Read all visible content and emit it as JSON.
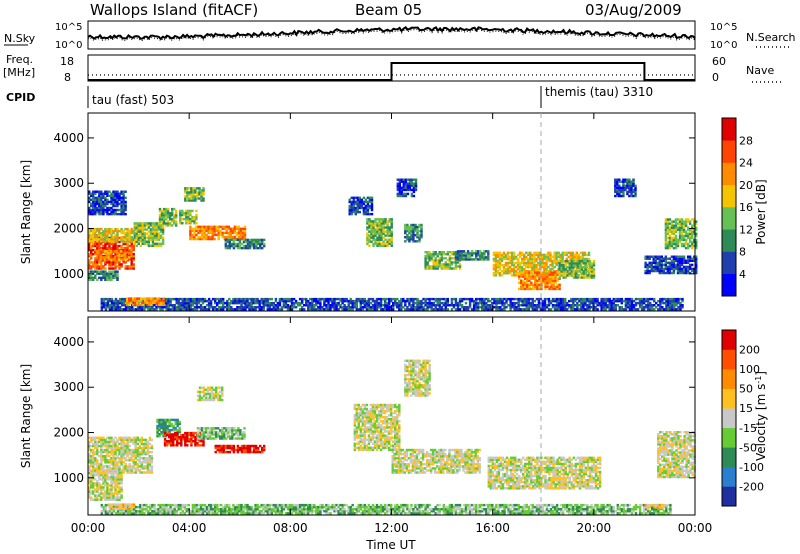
{
  "header": {
    "site": "Wallops Island (fitACF)",
    "beam": "Beam 05",
    "date": "03/Aug/2009"
  },
  "strips": {
    "nsky_label": "N.Sky",
    "nsearch_label": "N.Search",
    "freq_label_1": "Freq.",
    "freq_label_2": "[MHz]",
    "nave_label": "Nave",
    "cpid_label": "CPID",
    "nsky_ticks_left": [
      "10^5",
      "10^0"
    ],
    "nsky_ticks_right": [
      "10^5",
      "10^0"
    ],
    "freq_ticks_left": [
      "18",
      "8"
    ],
    "nave_ticks_right": [
      "60",
      "0"
    ],
    "cpid_programs": [
      {
        "name": "tau (fast) 503",
        "start_hour": 0
      },
      {
        "name": "themis (tau) 3310",
        "start_hour": 18
      }
    ],
    "freq_step": {
      "low_mhz": 8,
      "high_mhz": 18,
      "high_from_hour": 12,
      "high_to_hour": 22
    }
  },
  "axes": {
    "ylabel": "Slant Range [km]",
    "xlabel": "Time UT",
    "x_ticks": [
      "00:00",
      "04:00",
      "08:00",
      "12:00",
      "16:00",
      "20:00",
      "00:00"
    ],
    "y_ticks": [
      "1000",
      "2000",
      "3000",
      "4000"
    ]
  },
  "colorbars": {
    "power": {
      "title": "Power [dB]",
      "ticks": [
        "4",
        "8",
        "12",
        "16",
        "20",
        "24",
        "28"
      ],
      "colors": [
        "#0000ff",
        "#1f3fb0",
        "#2e8b57",
        "#66c055",
        "#f5c400",
        "#ff8c00",
        "#ff4500",
        "#e00000"
      ]
    },
    "velocity": {
      "title_main": "Velocity [m s",
      "title_exp": "-1",
      "title_end": "]",
      "ticks": [
        "200",
        "100",
        "50",
        "15",
        "-15",
        "-50",
        "-100",
        "-200"
      ],
      "colors": [
        "#1e2fa0",
        "#2a7fd0",
        "#2e8b57",
        "#66cc33",
        "#c8c8c8",
        "#ffc020",
        "#ff8c00",
        "#ff5000",
        "#e00000"
      ]
    }
  },
  "chart_data": [
    {
      "type": "heatmap",
      "name": "power",
      "x_range_hours": [
        0,
        24
      ],
      "ylim": [
        180,
        4550
      ],
      "value_unit": "dB",
      "blobs": [
        {
          "t0": 0.0,
          "t1": 1.8,
          "r0": 1100,
          "r1": 1800,
          "level": 6
        },
        {
          "t0": 0.0,
          "t1": 2.2,
          "r0": 1700,
          "r1": 2000,
          "level": 4
        },
        {
          "t0": 0.0,
          "t1": 1.2,
          "r0": 850,
          "r1": 1050,
          "level": 2
        },
        {
          "t0": 0.3,
          "t1": 1.6,
          "r0": 1300,
          "r1": 1500,
          "level": 5
        },
        {
          "t0": 1.8,
          "t1": 3.0,
          "r0": 1600,
          "r1": 2100,
          "level": 3
        },
        {
          "t0": 2.8,
          "t1": 3.5,
          "r0": 2050,
          "r1": 2450,
          "level": 3
        },
        {
          "t0": 3.6,
          "t1": 4.3,
          "r0": 2100,
          "r1": 2400,
          "level": 3
        },
        {
          "t0": 3.8,
          "t1": 4.6,
          "r0": 2600,
          "r1": 2900,
          "level": 3
        },
        {
          "t0": 4.0,
          "t1": 6.2,
          "r0": 1750,
          "r1": 2050,
          "level": 5
        },
        {
          "t0": 5.4,
          "t1": 7.0,
          "r0": 1550,
          "r1": 1750,
          "level": 2
        },
        {
          "t0": 0.0,
          "t1": 1.5,
          "r0": 2300,
          "r1": 2800,
          "level": 1
        },
        {
          "t0": 10.3,
          "t1": 11.2,
          "r0": 2300,
          "r1": 2700,
          "level": 1
        },
        {
          "t0": 11.0,
          "t1": 12.0,
          "r0": 1600,
          "r1": 2200,
          "level": 3
        },
        {
          "t0": 12.2,
          "t1": 13.0,
          "r0": 2700,
          "r1": 3100,
          "level": 1
        },
        {
          "t0": 12.5,
          "t1": 13.2,
          "r0": 1700,
          "r1": 2100,
          "level": 2
        },
        {
          "t0": 13.3,
          "t1": 14.7,
          "r0": 1100,
          "r1": 1500,
          "level": 3
        },
        {
          "t0": 14.5,
          "t1": 15.8,
          "r0": 1300,
          "r1": 1500,
          "level": 2
        },
        {
          "t0": 16.0,
          "t1": 19.8,
          "r0": 950,
          "r1": 1450,
          "level": 4
        },
        {
          "t0": 17.0,
          "t1": 18.6,
          "r0": 650,
          "r1": 1050,
          "level": 5
        },
        {
          "t0": 18.6,
          "t1": 20.0,
          "r0": 900,
          "r1": 1300,
          "level": 3
        },
        {
          "t0": 20.8,
          "t1": 21.6,
          "r0": 2700,
          "r1": 3100,
          "level": 1
        },
        {
          "t0": 22.8,
          "t1": 24.0,
          "r0": 1550,
          "r1": 2200,
          "level": 3
        },
        {
          "t0": 22.0,
          "t1": 24.0,
          "r0": 1000,
          "r1": 1400,
          "level": 1
        },
        {
          "t0": 0.5,
          "t1": 23.5,
          "r0": 200,
          "r1": 450,
          "level": 1
        },
        {
          "t0": 1.5,
          "t1": 3.0,
          "r0": 300,
          "r1": 450,
          "level": 5
        }
      ]
    },
    {
      "type": "heatmap",
      "name": "velocity",
      "x_range_hours": [
        0,
        24
      ],
      "ylim": [
        180,
        4550
      ],
      "value_unit": "m s-1",
      "blobs": [
        {
          "t0": 0.0,
          "t1": 2.5,
          "r0": 1100,
          "r1": 1900,
          "level": 4
        },
        {
          "t0": 0.0,
          "t1": 1.3,
          "r0": 500,
          "r1": 1100,
          "level": 4
        },
        {
          "t0": 2.7,
          "t1": 3.6,
          "r0": 1900,
          "r1": 2300,
          "level": 6
        },
        {
          "t0": 3.0,
          "t1": 4.6,
          "r0": 1700,
          "r1": 2000,
          "level": 0
        },
        {
          "t0": 4.3,
          "t1": 6.2,
          "r0": 1850,
          "r1": 2100,
          "level": 5
        },
        {
          "t0": 5.0,
          "t1": 7.0,
          "r0": 1550,
          "r1": 1700,
          "level": 0
        },
        {
          "t0": 4.3,
          "t1": 5.3,
          "r0": 2700,
          "r1": 3000,
          "level": 4
        },
        {
          "t0": 10.5,
          "t1": 12.3,
          "r0": 1600,
          "r1": 2600,
          "level": 4
        },
        {
          "t0": 12.0,
          "t1": 15.5,
          "r0": 1100,
          "r1": 1600,
          "level": 4
        },
        {
          "t0": 15.8,
          "t1": 20.2,
          "r0": 750,
          "r1": 1450,
          "level": 4
        },
        {
          "t0": 22.5,
          "t1": 24.0,
          "r0": 1000,
          "r1": 2000,
          "level": 4
        },
        {
          "t0": 0.5,
          "t1": 23.0,
          "r0": 200,
          "r1": 400,
          "level": 5
        },
        {
          "t0": 12.5,
          "t1": 13.5,
          "r0": 2800,
          "r1": 3600,
          "level": 4
        },
        {
          "t0": 0.8,
          "t1": 1.8,
          "r0": 300,
          "r1": 420,
          "level": 3
        },
        {
          "t0": 22.0,
          "t1": 22.8,
          "r0": 330,
          "r1": 420,
          "level": 3
        }
      ]
    }
  ]
}
